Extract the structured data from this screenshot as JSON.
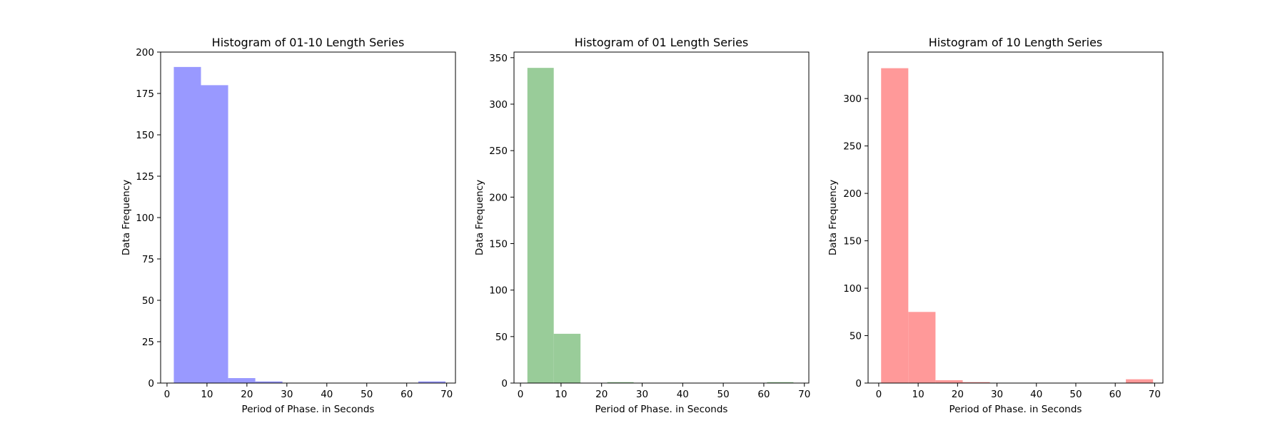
{
  "chart_data": [
    {
      "type": "bar",
      "title": "Histogram of 01-10 Length Series",
      "xlabel": "Period of Phase. in Seconds",
      "ylabel": "Data Frequency",
      "xlim": [
        -1.6,
        72.2
      ],
      "ylim": [
        0,
        200
      ],
      "xticks": [
        0,
        10,
        20,
        30,
        40,
        50,
        60,
        70
      ],
      "yticks": [
        0,
        25,
        50,
        75,
        100,
        125,
        150,
        175,
        200
      ],
      "color": "#9999ff",
      "bins": [
        {
          "x0": 1.7,
          "x1": 8.5,
          "value": 191
        },
        {
          "x0": 8.5,
          "x1": 15.3,
          "value": 180
        },
        {
          "x0": 15.3,
          "x1": 22.1,
          "value": 3
        },
        {
          "x0": 22.1,
          "x1": 28.9,
          "value": 1
        },
        {
          "x0": 28.9,
          "x1": 35.7,
          "value": 0
        },
        {
          "x0": 35.7,
          "x1": 42.5,
          "value": 0
        },
        {
          "x0": 42.5,
          "x1": 49.3,
          "value": 0
        },
        {
          "x0": 49.3,
          "x1": 56.1,
          "value": 0
        },
        {
          "x0": 56.1,
          "x1": 62.9,
          "value": 0
        },
        {
          "x0": 62.9,
          "x1": 69.7,
          "value": 1
        }
      ],
      "grid": false
    },
    {
      "type": "bar",
      "title": "Histogram of 01 Length Series",
      "xlabel": "Period of Phase. in Seconds",
      "ylabel": "Data Frequency",
      "xlim": [
        -1.6,
        71.1
      ],
      "ylim": [
        0,
        356
      ],
      "xticks": [
        0,
        10,
        20,
        30,
        40,
        50,
        60,
        70
      ],
      "yticks": [
        0,
        50,
        100,
        150,
        200,
        250,
        300,
        350
      ],
      "color": "#99cc99",
      "bins": [
        {
          "x0": 1.7,
          "x1": 8.2,
          "value": 339
        },
        {
          "x0": 8.2,
          "x1": 14.8,
          "value": 53
        },
        {
          "x0": 14.8,
          "x1": 21.4,
          "value": 0
        },
        {
          "x0": 21.4,
          "x1": 27.9,
          "value": 1
        },
        {
          "x0": 27.9,
          "x1": 34.5,
          "value": 0
        },
        {
          "x0": 34.5,
          "x1": 41.1,
          "value": 0
        },
        {
          "x0": 41.1,
          "x1": 47.6,
          "value": 0
        },
        {
          "x0": 47.6,
          "x1": 54.2,
          "value": 0
        },
        {
          "x0": 54.2,
          "x1": 60.8,
          "value": 0
        },
        {
          "x0": 60.8,
          "x1": 67.3,
          "value": 1
        }
      ],
      "grid": false
    },
    {
      "type": "bar",
      "title": "Histogram of 10 Length Series",
      "xlabel": "Period of Phase. in Seconds",
      "ylabel": "Data Frequency",
      "xlim": [
        -2.7,
        72.1
      ],
      "ylim": [
        0,
        349
      ],
      "xticks": [
        0,
        10,
        20,
        30,
        40,
        50,
        60,
        70
      ],
      "yticks": [
        0,
        50,
        100,
        150,
        200,
        250,
        300
      ],
      "color": "#ff9999",
      "bins": [
        {
          "x0": 0.6,
          "x1": 7.5,
          "value": 332
        },
        {
          "x0": 7.5,
          "x1": 14.4,
          "value": 75
        },
        {
          "x0": 14.4,
          "x1": 21.3,
          "value": 3
        },
        {
          "x0": 21.3,
          "x1": 28.2,
          "value": 1
        },
        {
          "x0": 28.2,
          "x1": 35.1,
          "value": 0
        },
        {
          "x0": 35.1,
          "x1": 42.0,
          "value": 0
        },
        {
          "x0": 42.0,
          "x1": 48.9,
          "value": 0
        },
        {
          "x0": 48.9,
          "x1": 55.8,
          "value": 0
        },
        {
          "x0": 55.8,
          "x1": 62.7,
          "value": 0
        },
        {
          "x0": 62.7,
          "x1": 69.6,
          "value": 4
        }
      ],
      "grid": false
    }
  ]
}
